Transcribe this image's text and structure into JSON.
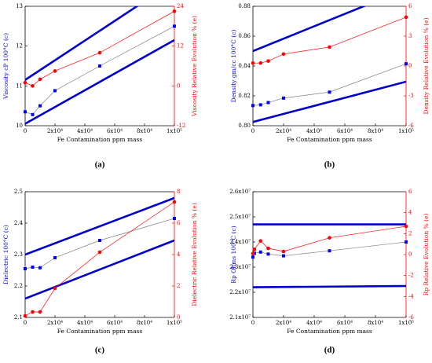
{
  "chart_data": [
    {
      "type": "line",
      "caption": "(a)",
      "xlabel": "Fe Contamination ppm mass",
      "ylabel": "Viscosity cP 100°C (c)",
      "y2label": "Viscosity Relative Evolution % (e)",
      "xlim": [
        0,
        100000
      ],
      "xticks": [
        0,
        {
          "value": 20000,
          "label": "2x10⁴"
        },
        {
          "value": 40000,
          "label": "4x10⁴"
        },
        {
          "value": 60000,
          "label": "6x10⁴"
        },
        {
          "value": 80000,
          "label": "8x10⁴"
        },
        {
          "value": 100000,
          "label": "1x10⁵"
        }
      ],
      "ylim": [
        10,
        13
      ],
      "yticks": [
        10,
        11,
        12,
        13
      ],
      "y2lim": [
        -12,
        24
      ],
      "y2ticks": [
        -12,
        0,
        12,
        24
      ],
      "series": [
        {
          "color": "#0000cc",
          "x": [
            0,
            100000
          ],
          "values": [
            11.15,
            13.62
          ]
        },
        {
          "color": "#0000cc",
          "x": [
            0,
            100000
          ],
          "values": [
            10.05,
            12.15
          ]
        },
        {
          "color": "#0000ff",
          "line_color": "#808080",
          "marker": "square",
          "x": [
            0,
            5000,
            10000,
            20000,
            50000,
            100000
          ],
          "values": [
            10.35,
            10.28,
            10.5,
            10.88,
            11.5,
            12.5
          ]
        },
        {
          "color": "#ff0000",
          "line_color": "#ff0000",
          "marker": "circle",
          "axis": "y2",
          "x": [
            0,
            5000,
            10000,
            20000,
            50000,
            100000
          ],
          "values": [
            1,
            0,
            2,
            4.5,
            10,
            22.5
          ]
        }
      ]
    },
    {
      "type": "line",
      "caption": "(b)",
      "xlabel": "Fe Contamination ppm mass",
      "ylabel": "Density gm/cc 100°C (c)",
      "y2label": "Density Relative Evolution % (e)",
      "xlim": [
        0,
        100000
      ],
      "xticks": [
        0,
        {
          "value": 20000,
          "label": "2x10⁴"
        },
        {
          "value": 40000,
          "label": "4x10⁴"
        },
        {
          "value": 60000,
          "label": "6x10⁴"
        },
        {
          "value": 80000,
          "label": "8x10⁴"
        },
        {
          "value": 100000,
          "label": "1x10⁵"
        }
      ],
      "ylim": [
        0.8,
        0.88
      ],
      "yticks": [
        {
          "value": 0.8,
          "label": "0.80"
        },
        0.82,
        0.84,
        0.86,
        0.88
      ],
      "y2lim": [
        -6,
        6
      ],
      "y2ticks": [
        -6,
        -3,
        0,
        3,
        6
      ],
      "series": [
        {
          "color": "#0000cc",
          "x": [
            0,
            100000
          ],
          "values": [
            0.85,
            0.8915
          ]
        },
        {
          "color": "#0000cc",
          "x": [
            0,
            100000
          ],
          "values": [
            0.8025,
            0.8295
          ]
        },
        {
          "color": "#0000ff",
          "line_color": "#808080",
          "marker": "square",
          "x": [
            0,
            5000,
            10000,
            20000,
            50000,
            100000
          ],
          "values": [
            0.8135,
            0.814,
            0.8155,
            0.8185,
            0.8225,
            0.8415
          ]
        },
        {
          "color": "#ff0000",
          "line_color": "#ff0000",
          "marker": "circle",
          "axis": "y2",
          "x": [
            0,
            5000,
            10000,
            20000,
            50000,
            100000
          ],
          "values": [
            0.3,
            0.3,
            0.5,
            1.2,
            1.9,
            4.9
          ]
        }
      ]
    },
    {
      "type": "line",
      "caption": "(c)",
      "xlabel": "Fe Contamination ppm mass",
      "ylabel": "Dielectric 100°C (c)",
      "y2label": "Dielectric Relative Evolution % (e)",
      "xlim": [
        0,
        100000
      ],
      "xticks": [
        0,
        {
          "value": 20000,
          "label": "2x10⁴"
        },
        {
          "value": 40000,
          "label": "4x10⁴"
        },
        {
          "value": 60000,
          "label": "6x10⁴"
        },
        {
          "value": 80000,
          "label": "8x10⁴"
        },
        {
          "value": 100000,
          "label": "1x10⁵"
        }
      ],
      "ylim": [
        2.1,
        2.5
      ],
      "yticks": [
        2.1,
        2.2,
        2.3,
        2.4,
        2.5
      ],
      "y2lim": [
        0,
        8
      ],
      "y2ticks": [
        0,
        2,
        4,
        6,
        8
      ],
      "series": [
        {
          "color": "#0000cc",
          "x": [
            0,
            100000
          ],
          "values": [
            2.3,
            2.48
          ]
        },
        {
          "color": "#0000cc",
          "x": [
            0,
            100000
          ],
          "values": [
            2.16,
            2.345
          ]
        },
        {
          "color": "#0000ff",
          "line_color": "#808080",
          "marker": "square",
          "x": [
            0,
            5000,
            10000,
            20000,
            50000,
            100000
          ],
          "values": [
            2.255,
            2.26,
            2.258,
            2.29,
            2.345,
            2.415
          ]
        },
        {
          "color": "#ff0000",
          "line_color": "#ff0000",
          "marker": "circle",
          "axis": "y2",
          "x": [
            0,
            5000,
            10000,
            20000,
            50000,
            100000
          ],
          "values": [
            0.1,
            0.35,
            0.35,
            1.85,
            4.15,
            7.35
          ]
        }
      ]
    },
    {
      "type": "line",
      "caption": "(d)",
      "xlabel": "Fe Contamination ppm mass",
      "ylabel": "Rp Ohms 100°C (c)",
      "y2label": "Rp Relative Evolution % (e)",
      "xlim": [
        0,
        100000
      ],
      "xticks": [
        0,
        {
          "value": 20000,
          "label": "2x10⁴"
        },
        {
          "value": 40000,
          "label": "4x10⁴"
        },
        {
          "value": 60000,
          "label": "6x10⁴"
        },
        {
          "value": 80000,
          "label": "8x10⁴"
        },
        {
          "value": 100000,
          "label": "1x10⁵"
        }
      ],
      "ylim": [
        21000000,
        26000000
      ],
      "yticks": [
        {
          "value": 21000000,
          "label": "2.1x10⁷"
        },
        {
          "value": 22000000,
          "label": "2.2x10⁷"
        },
        {
          "value": 23000000,
          "label": "2.3x10⁷"
        },
        {
          "value": 24000000,
          "label": "2.4x10⁷"
        },
        {
          "value": 25000000,
          "label": "2.5x10⁷"
        },
        {
          "value": 26000000,
          "label": "2.6x10⁷"
        }
      ],
      "y2lim": [
        -6,
        6
      ],
      "y2ticks": [
        -6,
        -4,
        -2,
        0,
        2,
        4,
        6
      ],
      "series": [
        {
          "color": "#0000cc",
          "x": [
            0,
            100000
          ],
          "values": [
            24700000,
            24700000
          ]
        },
        {
          "color": "#0000cc",
          "x": [
            0,
            100000
          ],
          "values": [
            22200000,
            22250000
          ]
        },
        {
          "color": "#0000ff",
          "line_color": "#808080",
          "marker": "square",
          "x": [
            0,
            1000,
            5000,
            10000,
            20000,
            50000,
            100000
          ],
          "values": [
            23400000,
            23550000,
            23600000,
            23520000,
            23450000,
            23650000,
            24000000
          ]
        },
        {
          "color": "#ff0000",
          "line_color": "#ff0000",
          "marker": "circle",
          "axis": "y2",
          "x": [
            0,
            1000,
            5000,
            10000,
            20000,
            50000,
            100000
          ],
          "values": [
            0.1,
            0.5,
            1.3,
            0.6,
            0.3,
            1.6,
            2.7
          ]
        }
      ]
    }
  ]
}
